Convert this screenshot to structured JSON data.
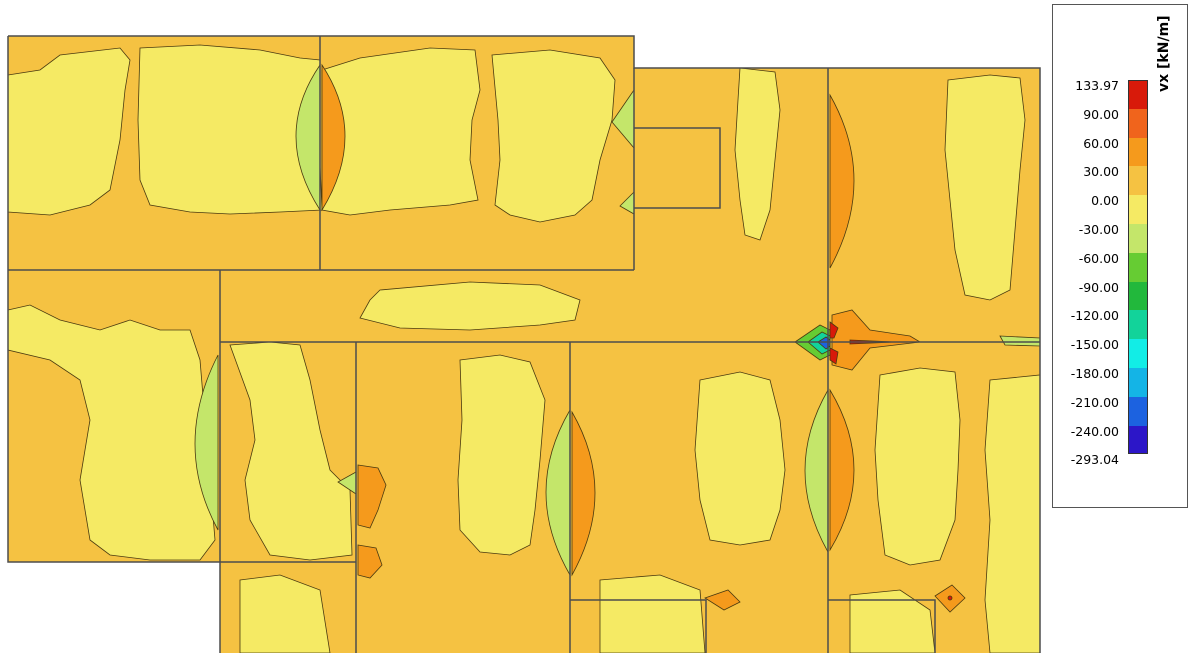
{
  "legend": {
    "title": "vx [kN/m]",
    "labels": [
      "133.97",
      "90.00",
      "60.00",
      "30.00",
      "0.00",
      "-30.00",
      "-60.00",
      "-90.00",
      "-120.00",
      "-150.00",
      "-180.00",
      "-210.00",
      "-240.00",
      "-293.04"
    ],
    "colors": [
      "#d81a0a",
      "#f0641c",
      "#f59a1c",
      "#f5c242",
      "#f5ea64",
      "#c4e66a",
      "#66cc33",
      "#22b83c",
      "#12d39a",
      "#12ede6",
      "#14b4e6",
      "#1c62e0",
      "#2c16c8"
    ]
  },
  "palette": {
    "level_30_60": "#f59a1c",
    "level_0_30": "#f5c242",
    "level_m30_0": "#f5ea64",
    "level_m60_m30": "#c4e66a",
    "level_90_134": "#d81a0a",
    "level_60_90": "#f0641c"
  }
}
